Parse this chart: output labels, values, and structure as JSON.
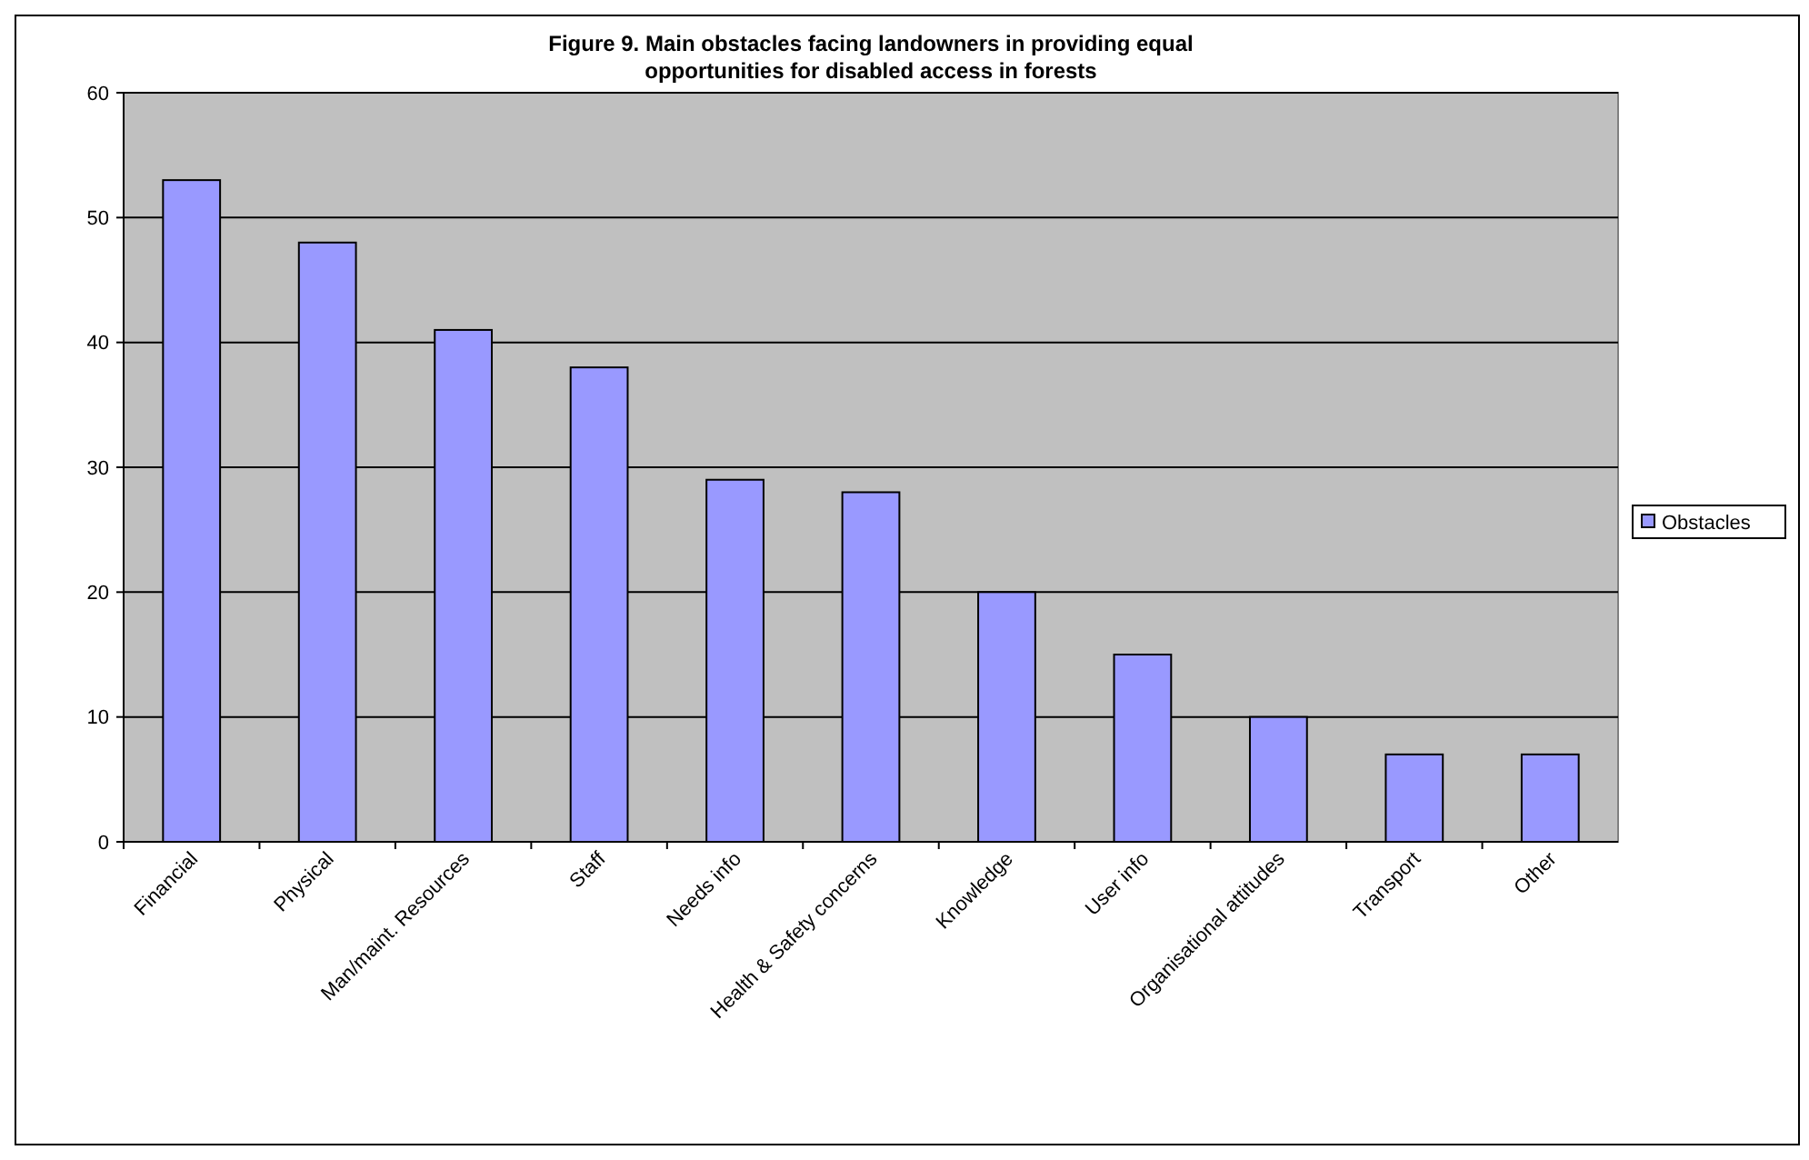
{
  "chart_data": {
    "type": "bar",
    "title": "Figure 9. Main obstacles facing landowners in providing equal opportunities for disabled access in forests",
    "categories": [
      "Financial",
      "Physical",
      "Man/maint. Resources",
      "Staff",
      "Needs info",
      "Health & Safety concerns",
      "Knowledge",
      "User info",
      "Organisational attitudes",
      "Transport",
      "Other"
    ],
    "series": [
      {
        "name": "Obstacles",
        "color": "#9999ff",
        "values": [
          53,
          48,
          41,
          38,
          29,
          28,
          20,
          15,
          10,
          7,
          7
        ]
      }
    ],
    "ylim": [
      0,
      60
    ],
    "yticks": [
      0,
      10,
      20,
      30,
      40,
      50,
      60
    ],
    "grid": "y",
    "legend": "right"
  }
}
